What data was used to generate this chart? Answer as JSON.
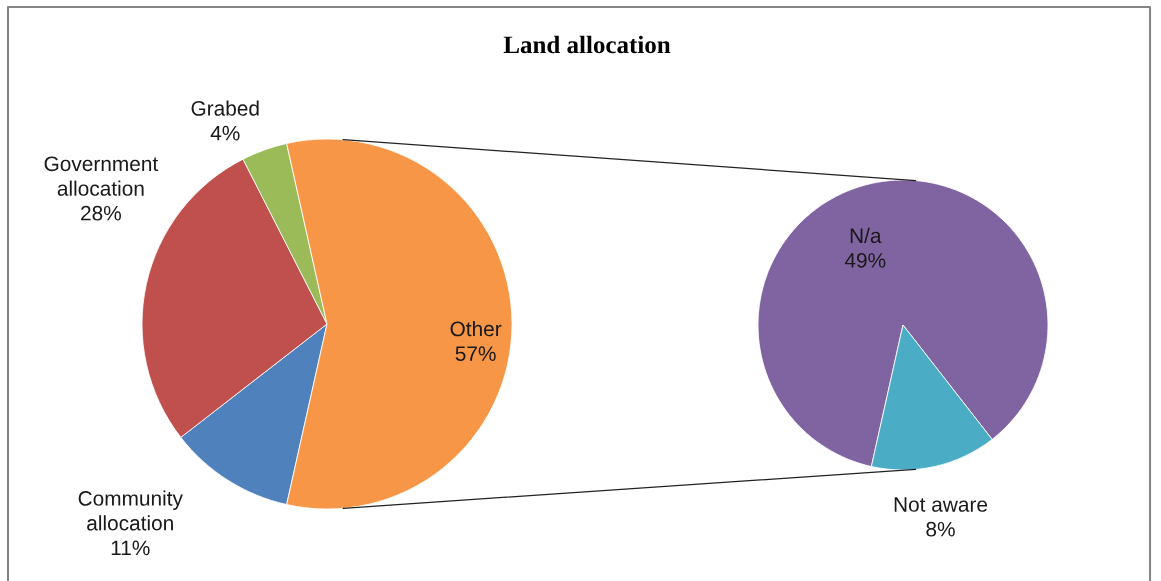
{
  "chart_data": [
    {
      "type": "pie",
      "title": "Land allocation",
      "categories": [
        "Community allocation",
        "Government allocation",
        "Grabed",
        "Other"
      ],
      "values": [
        11,
        28,
        4,
        57
      ],
      "colors": [
        "#4f81bd",
        "#c0504d",
        "#9bbb59",
        "#f79646"
      ],
      "value_labels": [
        "11%",
        "28%",
        "4%",
        "57%"
      ]
    },
    {
      "type": "pie",
      "categories": [
        "N/a",
        "Not aware"
      ],
      "values": [
        49,
        8
      ],
      "colors": [
        "#8064a2",
        "#4bacc6"
      ],
      "value_labels": [
        "49%",
        "8%"
      ]
    }
  ]
}
